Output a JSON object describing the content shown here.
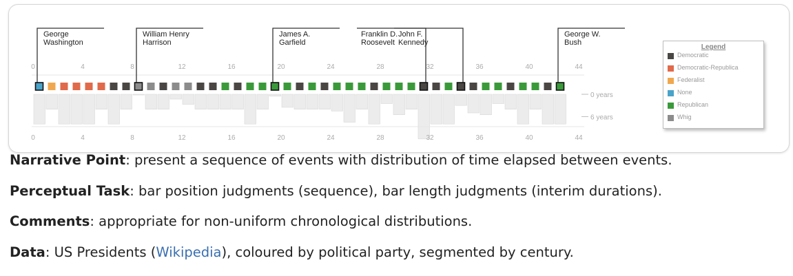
{
  "colors": {
    "Democratic": "#4a4644",
    "Democratic-Republican": "#e06a4a",
    "Federalist": "#f0a850",
    "None": "#4aa3c9",
    "Republican": "#3a9a3a",
    "Whig": "#8c8c8c",
    "duration_bar": "#ececec",
    "callout": "#333333",
    "link": "#3a6fb0"
  },
  "legend": {
    "title": "Legend",
    "items": [
      {
        "label": "Democratic",
        "key": "Democratic"
      },
      {
        "label": "Democratic-Republica",
        "key": "Democratic-Republican"
      },
      {
        "label": "Federalist",
        "key": "Federalist"
      },
      {
        "label": "None",
        "key": "None"
      },
      {
        "label": "Republican",
        "key": "Republican"
      },
      {
        "label": "Whig",
        "key": "Whig"
      }
    ]
  },
  "chart_data": {
    "type": "bar",
    "x_ticks": [
      0,
      4,
      8,
      12,
      16,
      20,
      24,
      28,
      32,
      36,
      40,
      44
    ],
    "xlim": [
      0,
      44
    ],
    "duration_ticks": [
      "0 years",
      "6 years"
    ],
    "duration_ylim": [
      0,
      8
    ],
    "presidents": [
      {
        "n": 1,
        "party": "None",
        "years": 8
      },
      {
        "n": 2,
        "party": "Federalist",
        "years": 4
      },
      {
        "n": 3,
        "party": "Democratic-Republican",
        "years": 8
      },
      {
        "n": 4,
        "party": "Democratic-Republican",
        "years": 8
      },
      {
        "n": 5,
        "party": "Democratic-Republican",
        "years": 8
      },
      {
        "n": 6,
        "party": "Democratic-Republican",
        "years": 4
      },
      {
        "n": 7,
        "party": "Democratic",
        "years": 8
      },
      {
        "n": 8,
        "party": "Democratic",
        "years": 4
      },
      {
        "n": 9,
        "party": "Whig",
        "years": 0.1
      },
      {
        "n": 10,
        "party": "Whig",
        "years": 4
      },
      {
        "n": 11,
        "party": "Democratic",
        "years": 4
      },
      {
        "n": 12,
        "party": "Whig",
        "years": 1.3
      },
      {
        "n": 13,
        "party": "Whig",
        "years": 2.7
      },
      {
        "n": 14,
        "party": "Democratic",
        "years": 4
      },
      {
        "n": 15,
        "party": "Democratic",
        "years": 4
      },
      {
        "n": 16,
        "party": "Republican",
        "years": 4
      },
      {
        "n": 17,
        "party": "Democratic",
        "years": 4
      },
      {
        "n": 18,
        "party": "Republican",
        "years": 8
      },
      {
        "n": 19,
        "party": "Republican",
        "years": 4
      },
      {
        "n": 20,
        "party": "Republican",
        "years": 0.5
      },
      {
        "n": 21,
        "party": "Republican",
        "years": 3.5
      },
      {
        "n": 22,
        "party": "Democratic",
        "years": 4
      },
      {
        "n": 23,
        "party": "Republican",
        "years": 4
      },
      {
        "n": 24,
        "party": "Democratic",
        "years": 4
      },
      {
        "n": 25,
        "party": "Republican",
        "years": 4.5
      },
      {
        "n": 26,
        "party": "Republican",
        "years": 7.5
      },
      {
        "n": 27,
        "party": "Republican",
        "years": 4
      },
      {
        "n": 28,
        "party": "Democratic",
        "years": 8
      },
      {
        "n": 29,
        "party": "Republican",
        "years": 2.5
      },
      {
        "n": 30,
        "party": "Republican",
        "years": 5.5
      },
      {
        "n": 31,
        "party": "Republican",
        "years": 4
      },
      {
        "n": 32,
        "party": "Democratic",
        "years": 12
      },
      {
        "n": 33,
        "party": "Democratic",
        "years": 8
      },
      {
        "n": 34,
        "party": "Republican",
        "years": 8
      },
      {
        "n": 35,
        "party": "Democratic",
        "years": 3
      },
      {
        "n": 36,
        "party": "Democratic",
        "years": 5
      },
      {
        "n": 37,
        "party": "Republican",
        "years": 5.5
      },
      {
        "n": 38,
        "party": "Republican",
        "years": 2.5
      },
      {
        "n": 39,
        "party": "Democratic",
        "years": 4
      },
      {
        "n": 40,
        "party": "Republican",
        "years": 8
      },
      {
        "n": 41,
        "party": "Republican",
        "years": 4
      },
      {
        "n": 42,
        "party": "Democratic",
        "years": 8
      },
      {
        "n": 43,
        "party": "Republican",
        "years": 8
      }
    ],
    "callouts": [
      {
        "n": 1,
        "lines": [
          "George",
          "Washington"
        ]
      },
      {
        "n": 9,
        "lines": [
          "William Henry",
          "Harrison"
        ]
      },
      {
        "n": 20,
        "lines": [
          "James A.",
          "Garfield"
        ]
      },
      {
        "n": 32,
        "lines": [
          "Franklin D.",
          "Roosevelt"
        ]
      },
      {
        "n": 35,
        "lines": [
          "John F.",
          "Kennedy"
        ]
      },
      {
        "n": 43,
        "lines": [
          "George W.",
          "Bush"
        ]
      }
    ]
  },
  "text": {
    "p1": {
      "head": "Narrative Point",
      "body": ": present a sequence of events with distribution of time elapsed between events."
    },
    "p2": {
      "head": "Perceptual Task",
      "body": ": bar position judgments (sequence), bar length judgments (interim durations)."
    },
    "p3": {
      "head": "Comments",
      "body": ": appropriate for non-uniform chronological distributions."
    },
    "p4": {
      "head": "Data",
      "body_pre": ": US Presidents (",
      "link": "Wikipedia",
      "body_post": "), coloured by political party, segmented by century."
    }
  }
}
